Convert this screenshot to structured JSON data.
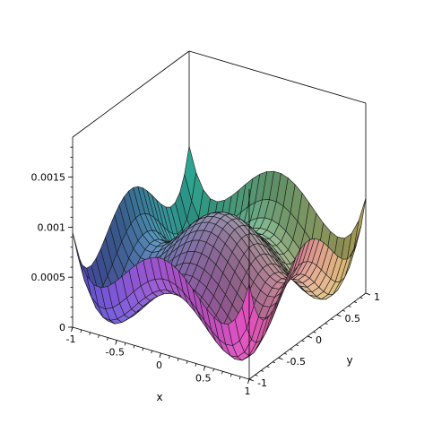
{
  "chart_data": {
    "type": "surface3d",
    "function": "f(x,y) = x^4 - x^2 + y^4 - y^2 + 0.5 (scaled to z range)",
    "xlabel": "x",
    "ylabel": "y",
    "zlabel": "",
    "xlim": [
      -1,
      1
    ],
    "ylim": [
      -1,
      1
    ],
    "zlim": [
      0,
      0.0019
    ],
    "x_ticks": [
      "-1",
      "-0.5",
      "0",
      "0.5",
      "1"
    ],
    "y_ticks": [
      "-1",
      "-0.5",
      "0",
      "0.5",
      "1"
    ],
    "z_ticks": [
      "0",
      "0.0005",
      "0.001",
      "0.0015"
    ],
    "grid": 25,
    "box": true,
    "colormap": "rainbow-shaded"
  }
}
